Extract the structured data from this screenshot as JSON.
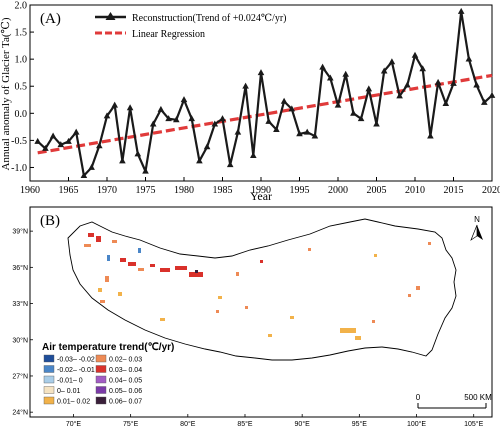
{
  "chart_data": [
    {
      "type": "line",
      "panel_label": "(A)",
      "xlabel": "Year",
      "ylabel": "Annual anomaly of Glacier Ta(℃)",
      "xlim": [
        1960,
        2020
      ],
      "ylim": [
        -1.25,
        2.0
      ],
      "x_ticks": [
        "1960",
        "1965",
        "1970",
        "1975",
        "1980",
        "1985",
        "1990",
        "1995",
        "2000",
        "2005",
        "2010",
        "2015",
        "2020"
      ],
      "y_ticks": [
        "-1.0",
        "-0.5",
        "0.0",
        "0.5",
        "1.0",
        "1.5",
        "2.0"
      ],
      "grid": false,
      "legend_position": "top-left",
      "x": [
        1961,
        1962,
        1963,
        1964,
        1965,
        1966,
        1967,
        1968,
        1969,
        1970,
        1971,
        1972,
        1973,
        1974,
        1975,
        1976,
        1977,
        1978,
        1979,
        1980,
        1981,
        1982,
        1983,
        1984,
        1985,
        1986,
        1987,
        1988,
        1989,
        1990,
        1991,
        1992,
        1993,
        1994,
        1995,
        1996,
        1997,
        1998,
        1999,
        2000,
        2001,
        2002,
        2003,
        2004,
        2005,
        2006,
        2007,
        2008,
        2009,
        2010,
        2011,
        2012,
        2013,
        2014,
        2015,
        2016,
        2017,
        2018,
        2019,
        2020
      ],
      "series": [
        {
          "name": "Reconstruction(Trend of +0.024℃/yr)",
          "color": "#1a1a1a",
          "marker": "triangle",
          "values": [
            -0.52,
            -0.65,
            -0.42,
            -0.58,
            -0.52,
            -0.35,
            -1.15,
            -1.0,
            -0.6,
            -0.05,
            0.15,
            -0.88,
            0.1,
            -0.75,
            -1.07,
            -0.2,
            0.07,
            -0.1,
            -0.12,
            0.25,
            -0.1,
            -0.88,
            -0.62,
            -0.2,
            -0.1,
            -0.95,
            -0.35,
            0.5,
            -0.78,
            0.75,
            -0.15,
            -0.3,
            0.22,
            0.08,
            -0.38,
            -0.35,
            -0.42,
            0.85,
            0.65,
            0.15,
            0.72,
            0.0,
            -0.1,
            0.45,
            -0.2,
            0.78,
            0.95,
            0.32,
            0.52,
            1.07,
            0.82,
            -0.42,
            0.57,
            0.18,
            0.55,
            1.88,
            1.0,
            0.52,
            0.2,
            0.33
          ]
        },
        {
          "name": "Linear Regression",
          "color": "#e03a3a",
          "style": "dashed",
          "x": [
            1961,
            2020
          ],
          "values": [
            -0.73,
            0.7
          ]
        }
      ]
    },
    {
      "type": "heatmap",
      "panel_label": "(B)",
      "map": true,
      "north_label": "N",
      "x_ticks": [
        "70°E",
        "75°E",
        "80°E",
        "85°E",
        "90°E",
        "95°E",
        "100°E",
        "105°E"
      ],
      "y_ticks": [
        "39°N",
        "36°N",
        "33°N",
        "30°N",
        "27°N",
        "24°N"
      ],
      "scale_bar": {
        "start_label": "0",
        "end_label": "500 KM"
      },
      "legend_title": "Air temperature trend(℃/yr)",
      "legend": [
        {
          "label": "-0.03– -0.02",
          "color": "#1f4e9a"
        },
        {
          "label": "-0.02– -0.01",
          "color": "#4a86c8"
        },
        {
          "label": "-0.01– 0",
          "color": "#a9cde8"
        },
        {
          "label": "0– 0.01",
          "color": "#f5e3c2"
        },
        {
          "label": "0.01– 0.02",
          "color": "#f2b24a"
        },
        {
          "label": "0.02– 0.03",
          "color": "#ee8a55"
        },
        {
          "label": "0.03– 0.04",
          "color": "#d9312b"
        },
        {
          "label": "0.04– 0.05",
          "color": "#a25cc4"
        },
        {
          "label": "0.05– 0.06",
          "color": "#7b3aa8"
        },
        {
          "label": "0.06– 0.07",
          "color": "#3a1f3a"
        }
      ]
    }
  ]
}
